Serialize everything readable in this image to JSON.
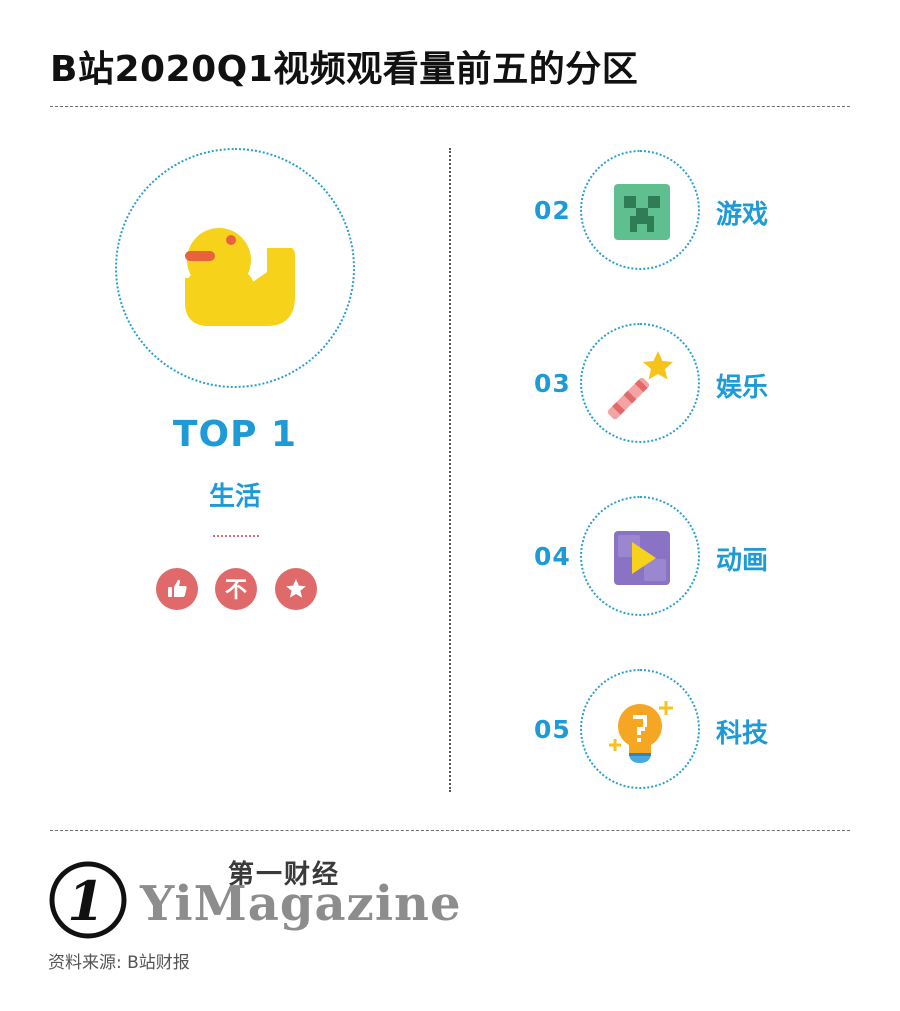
{
  "title": "B站2020Q1视频观看量前五的分区",
  "top": {
    "rank_label": "TOP 1",
    "name": "生活",
    "icon": "duck-icon"
  },
  "badges": [
    {
      "icon": "thumbs-up-icon"
    },
    {
      "icon": "coin-icon",
      "glyph": "不"
    },
    {
      "icon": "star-icon"
    }
  ],
  "ranking": [
    {
      "rank": "02",
      "name": "游戏",
      "icon": "creeper-icon"
    },
    {
      "rank": "03",
      "name": "娱乐",
      "icon": "magic-wand-icon"
    },
    {
      "rank": "04",
      "name": "动画",
      "icon": "play-icon"
    },
    {
      "rank": "05",
      "name": "科技",
      "icon": "lightbulb-icon"
    }
  ],
  "brand": {
    "mark": "1",
    "cn": "第一财经",
    "en": "YiMagazine"
  },
  "source": "资料来源: B站财报",
  "colors": {
    "accent": "#1e9ad6",
    "badge": "#e06a6a",
    "duck": "#f7d21b"
  }
}
